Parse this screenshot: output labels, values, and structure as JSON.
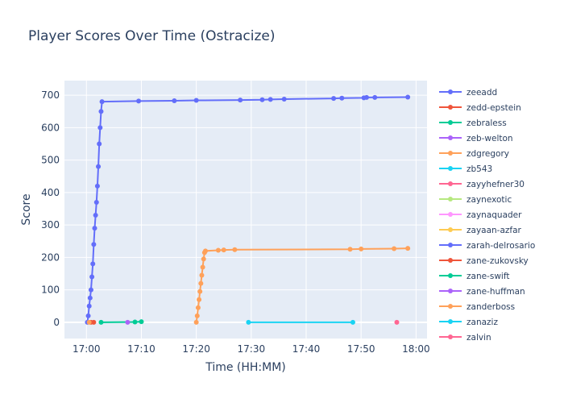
{
  "chart_data": {
    "type": "line",
    "title": "Player Scores Over Time (Ostracize)",
    "xlabel": "Time (HH:MM)",
    "ylabel": "Score",
    "x_ticks": [
      "17:00",
      "17:10",
      "17:20",
      "17:30",
      "17:40",
      "17:50",
      "18:00"
    ],
    "y_ticks": [
      0,
      100,
      200,
      300,
      400,
      500,
      600,
      700
    ],
    "xlim": [
      "16:56",
      "18:02"
    ],
    "ylim": [
      -50,
      745
    ],
    "grid": true,
    "legend_position": "right",
    "series": [
      {
        "name": "zeeadd",
        "color": "#636efa",
        "points": [
          [
            "17:00:10",
            0
          ],
          [
            "17:00:20",
            20
          ],
          [
            "17:00:30",
            50
          ],
          [
            "17:00:40",
            75
          ],
          [
            "17:00:50",
            100
          ],
          [
            "17:01:00",
            140
          ],
          [
            "17:01:10",
            180
          ],
          [
            "17:01:20",
            240
          ],
          [
            "17:01:30",
            290
          ],
          [
            "17:01:40",
            330
          ],
          [
            "17:01:50",
            370
          ],
          [
            "17:02:00",
            420
          ],
          [
            "17:02:10",
            480
          ],
          [
            "17:02:20",
            550
          ],
          [
            "17:02:30",
            600
          ],
          [
            "17:02:40",
            650
          ],
          [
            "17:02:50",
            680
          ],
          [
            "17:09:30",
            682
          ],
          [
            "17:16:00",
            683
          ],
          [
            "17:20:00",
            684
          ],
          [
            "17:28:00",
            685
          ],
          [
            "17:32:00",
            686
          ],
          [
            "17:33:30",
            687
          ],
          [
            "17:36:00",
            688
          ],
          [
            "17:45:00",
            690
          ],
          [
            "17:46:30",
            691
          ],
          [
            "17:50:30",
            692
          ],
          [
            "17:51:00",
            693
          ],
          [
            "17:52:30",
            693
          ],
          [
            "17:58:30",
            694
          ]
        ]
      },
      {
        "name": "zedd-epstein",
        "color": "#EF553B",
        "points": [
          [
            "17:00:50",
            0
          ],
          [
            "17:01:20",
            0
          ]
        ]
      },
      {
        "name": "zebraless",
        "color": "#00cc96",
        "points": [
          [
            "17:02:40",
            0
          ],
          [
            "17:08:50",
            1
          ],
          [
            "17:10:00",
            2
          ]
        ]
      },
      {
        "name": "zeb-welton",
        "color": "#ab63fa",
        "points": [
          [
            "17:07:30",
            0
          ]
        ]
      },
      {
        "name": "zdgregory",
        "color": "#FFA15A",
        "points": [
          [
            "17:00:30",
            0
          ]
        ]
      },
      {
        "name": "zb543",
        "color": "#19d3f3",
        "points": [
          [
            "17:29:30",
            0
          ],
          [
            "17:48:30",
            0
          ]
        ]
      },
      {
        "name": "zayyhefner30",
        "color": "#FF6692",
        "points": [
          [
            "17:56:30",
            0
          ]
        ]
      },
      {
        "name": "zaynexotic",
        "color": "#B6E880",
        "points": []
      },
      {
        "name": "zaynaquader",
        "color": "#FF97FF",
        "points": []
      },
      {
        "name": "zayaan-azfar",
        "color": "#FECB52",
        "points": []
      },
      {
        "name": "zarah-delrosario",
        "color": "#636efa",
        "points": []
      },
      {
        "name": "zane-zukovsky",
        "color": "#EF553B",
        "points": []
      },
      {
        "name": "zane-swift",
        "color": "#00cc96",
        "points": []
      },
      {
        "name": "zane-huffman",
        "color": "#ab63fa",
        "points": []
      },
      {
        "name": "zanderboss",
        "color": "#FFA15A",
        "points": [
          [
            "17:20:00",
            0
          ],
          [
            "17:20:10",
            20
          ],
          [
            "17:20:20",
            45
          ],
          [
            "17:20:30",
            70
          ],
          [
            "17:20:40",
            95
          ],
          [
            "17:20:50",
            120
          ],
          [
            "17:21:00",
            145
          ],
          [
            "17:21:10",
            170
          ],
          [
            "17:21:20",
            195
          ],
          [
            "17:21:30",
            215
          ],
          [
            "17:21:40",
            220
          ],
          [
            "17:24:00",
            222
          ],
          [
            "17:25:00",
            223
          ],
          [
            "17:27:00",
            224
          ],
          [
            "17:48:00",
            225
          ],
          [
            "17:50:00",
            226
          ],
          [
            "17:56:00",
            227
          ],
          [
            "17:58:30",
            228
          ]
        ]
      },
      {
        "name": "zanaziz",
        "color": "#19d3f3",
        "points": []
      },
      {
        "name": "zalvin",
        "color": "#FF6692",
        "points": []
      }
    ]
  }
}
